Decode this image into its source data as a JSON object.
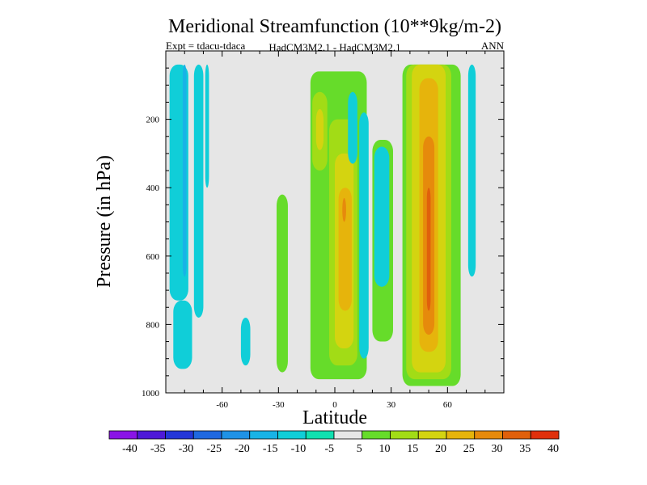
{
  "chart_data": {
    "type": "contour",
    "title": "Meridional Streamfunction (10**9kg/m-2)",
    "subtitle_left": "Expt = tdacu-tdaca",
    "subtitle_center": "HadCM3M2.1 - HadCM3M2.1",
    "subtitle_right": "ANN",
    "xlabel": "Latitude",
    "ylabel": "Pressure (in hPa)",
    "xlim": [
      -90,
      90
    ],
    "ylim": [
      1000,
      0
    ],
    "xticks": [
      -60,
      -30,
      0,
      30,
      60
    ],
    "xtick_labels": [
      "-60",
      "-30",
      "0",
      "30",
      "60"
    ],
    "yticks": [
      200,
      400,
      600,
      800,
      1000
    ],
    "ytick_labels": [
      "200",
      "400",
      "600",
      "800",
      "1000"
    ],
    "background_color": "#e6e6e6",
    "colorbar": {
      "levels": [
        -40,
        -35,
        -30,
        -25,
        -20,
        -15,
        -10,
        -5,
        5,
        10,
        15,
        20,
        25,
        30,
        35,
        40
      ],
      "labels": [
        "-40",
        "-35",
        "-30",
        "-25",
        "-20",
        "-15",
        "-10",
        "-5",
        "5",
        "10",
        "15",
        "20",
        "25",
        "30",
        "35",
        "40"
      ],
      "colors": [
        "#8a14e6",
        "#4e19d8",
        "#2436d8",
        "#1f68e0",
        "#1f92e6",
        "#18b3e6",
        "#10ced8",
        "#10e0b0",
        "#e6e6e6",
        "#66dc2a",
        "#a2dc16",
        "#d4d410",
        "#e6b40c",
        "#e68a0c",
        "#e0600c",
        "#e0300c"
      ]
    },
    "regions": [
      {
        "lat": [
          -88,
          -78
        ],
        "p": [
          40,
          730
        ],
        "level": -10
      },
      {
        "lat": [
          -86,
          -76
        ],
        "p": [
          730,
          930
        ],
        "level": -10
      },
      {
        "lat": [
          -81,
          -79
        ],
        "p": [
          40,
          660
        ],
        "level": -15
      },
      {
        "lat": [
          -75,
          -70
        ],
        "p": [
          40,
          780
        ],
        "level": -10
      },
      {
        "lat": [
          -69,
          -67
        ],
        "p": [
          40,
          400
        ],
        "level": -10
      },
      {
        "lat": [
          -50,
          -45
        ],
        "p": [
          780,
          920
        ],
        "level": -10
      },
      {
        "lat": [
          -31,
          -25
        ],
        "p": [
          420,
          940
        ],
        "level": 10
      },
      {
        "lat": [
          -13,
          17
        ],
        "p": [
          60,
          960
        ],
        "level": 10
      },
      {
        "lat": [
          -12,
          -4
        ],
        "p": [
          120,
          350
        ],
        "level": 15
      },
      {
        "lat": [
          -10,
          -6
        ],
        "p": [
          170,
          290
        ],
        "level": 20
      },
      {
        "lat": [
          -3,
          12
        ],
        "p": [
          200,
          920
        ],
        "level": 15
      },
      {
        "lat": [
          0,
          10
        ],
        "p": [
          300,
          870
        ],
        "level": 20
      },
      {
        "lat": [
          2,
          9
        ],
        "p": [
          400,
          760
        ],
        "level": 25
      },
      {
        "lat": [
          4,
          6
        ],
        "p": [
          430,
          500
        ],
        "level": 30
      },
      {
        "lat": [
          7,
          12
        ],
        "p": [
          120,
          330
        ],
        "level": -10
      },
      {
        "lat": [
          13,
          18
        ],
        "p": [
          180,
          900
        ],
        "level": -10
      },
      {
        "lat": [
          20,
          31
        ],
        "p": [
          260,
          850
        ],
        "level": 10
      },
      {
        "lat": [
          21,
          29
        ],
        "p": [
          280,
          690
        ],
        "level": -10
      },
      {
        "lat": [
          36,
          67
        ],
        "p": [
          40,
          980
        ],
        "level": 10
      },
      {
        "lat": [
          38,
          62
        ],
        "p": [
          40,
          960
        ],
        "level": 15
      },
      {
        "lat": [
          41,
          59
        ],
        "p": [
          40,
          940
        ],
        "level": 20
      },
      {
        "lat": [
          45,
          55
        ],
        "p": [
          80,
          880
        ],
        "level": 25
      },
      {
        "lat": [
          47,
          53
        ],
        "p": [
          250,
          830
        ],
        "level": 30
      },
      {
        "lat": [
          49,
          51
        ],
        "p": [
          400,
          760
        ],
        "level": 35
      },
      {
        "lat": [
          71,
          75
        ],
        "p": [
          40,
          660
        ],
        "level": -10
      }
    ]
  }
}
